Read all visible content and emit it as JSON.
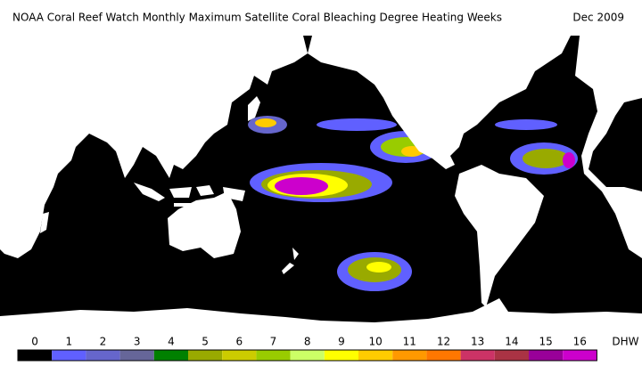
{
  "header": {
    "title": "NOAA Coral Reef Watch Monthly Maximum Satellite Coral Bleaching Degree Heating Weeks",
    "date": "Dec 2009"
  },
  "legend": {
    "values": [
      0,
      1,
      2,
      3,
      4,
      5,
      6,
      7,
      8,
      9,
      10,
      11,
      12,
      13,
      14,
      15,
      16
    ],
    "colors": [
      "#000000",
      "#6060ff",
      "#6666cc",
      "#666699",
      "#008000",
      "#99aa00",
      "#cccc00",
      "#99cc00",
      "#ccff66",
      "#ffff00",
      "#ffcc00",
      "#ff9900",
      "#ff7700",
      "#cc3366",
      "#aa3344",
      "#990099",
      "#cc00cc"
    ],
    "unit": "DHW"
  }
}
